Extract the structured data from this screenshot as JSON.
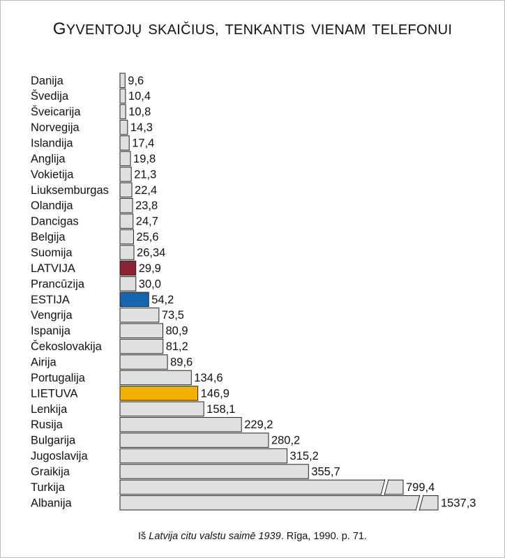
{
  "chart_data": {
    "type": "bar",
    "orientation": "horizontal",
    "title": "Gyventojų skaičius, tenkantis vienam telefonui",
    "categories": [
      "Danija",
      "Švedija",
      "Šveicarija",
      "Norvegija",
      "Islandija",
      "Anglija",
      "Vokietija",
      "Liuksemburgas",
      "Olandija",
      "Dancigas",
      "Belgija",
      "Suomija",
      "LATVIJA",
      "Prancūzija",
      "ESTIJA",
      "Vengrija",
      "Ispanija",
      "Čekoslovakija",
      "Airija",
      "Portugalija",
      "LIETUVA",
      "Lenkija",
      "Rusija",
      "Bulgarija",
      "Jugoslavija",
      "Graikija",
      "Turkija",
      "Albanija"
    ],
    "values": [
      9.6,
      10.4,
      10.8,
      14.3,
      17.4,
      19.8,
      21.3,
      22.4,
      23.8,
      24.7,
      25.6,
      26.34,
      29.9,
      30.0,
      54.2,
      73.5,
      80.9,
      81.2,
      89.6,
      134.6,
      146.9,
      158.1,
      229.2,
      280.2,
      315.2,
      355.7,
      799.4,
      1537.3
    ],
    "value_labels": [
      "9,6",
      "10,4",
      "10,8",
      "14,3",
      "17,4",
      "19,8",
      "21,3",
      "22,4",
      "23,8",
      "24,7",
      "25,6",
      "26,34",
      "29,9",
      "30,0",
      "54,2",
      "73,5",
      "80,9",
      "81,2",
      "89,6",
      "134,6",
      "146,9",
      "158,1",
      "229,2",
      "280,2",
      "315,2",
      "355,7",
      "799,4",
      "1537,3"
    ],
    "axis_break_on": [
      "Turkija",
      "Albanija"
    ],
    "colors": {
      "default": "#e0e0e0",
      "outline": "#222222",
      "LATVIJA": "#8c2335",
      "ESTIJA": "#1565b0",
      "LIETUVA": "#f2b000"
    },
    "xlabel": "",
    "ylabel": "",
    "grid": false,
    "legend": "none"
  },
  "source": {
    "prefix": "Iš ",
    "italic": "Latvija citu valstu saimē 1939",
    "suffix": ". Rīga, 1990. p. 71."
  }
}
